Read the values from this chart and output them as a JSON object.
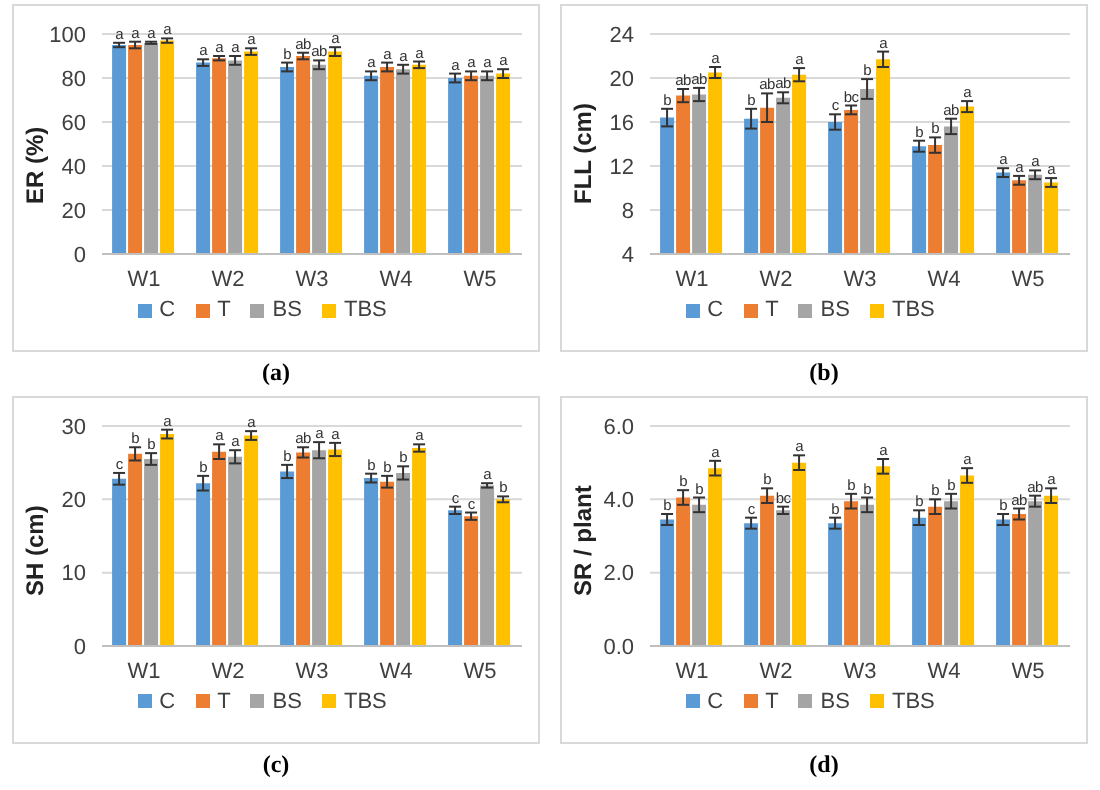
{
  "chart_data": [
    {
      "type": "bar",
      "ylabel": "ER (%)",
      "categories": [
        "W1",
        "W2",
        "W3",
        "W4",
        "W5"
      ],
      "ylim": [
        0,
        100
      ],
      "yticks": [
        0,
        20,
        40,
        60,
        80,
        100
      ],
      "grid": "y",
      "legend": "bottom",
      "annotations": [
        "(a)"
      ],
      "series": [
        {
          "name": "C",
          "color": "#5b9bd5",
          "values": [
            95,
            87,
            85,
            81,
            80
          ],
          "errors": [
            1,
            1.5,
            2,
            2,
            2
          ],
          "value_labels": [
            "a",
            "a",
            "b",
            "a",
            "a"
          ]
        },
        {
          "name": "T",
          "color": "#ed7d31",
          "values": [
            95,
            89,
            90,
            85,
            81
          ],
          "errors": [
            1.5,
            1,
            1.5,
            2,
            2
          ],
          "value_labels": [
            "a",
            "a",
            "ab",
            "a",
            "a"
          ]
        },
        {
          "name": "BS",
          "color": "#a5a5a5",
          "values": [
            96,
            88,
            86,
            84,
            81
          ],
          "errors": [
            0.5,
            2,
            2,
            2,
            2
          ],
          "value_labels": [
            "a",
            "a",
            "ab",
            "a",
            "a"
          ]
        },
        {
          "name": "TBS",
          "color": "#ffc000",
          "values": [
            97,
            92,
            92,
            86,
            82
          ],
          "errors": [
            1,
            1.5,
            2,
            1.5,
            2
          ],
          "value_labels": [
            "a",
            "a",
            "a",
            "a",
            "a"
          ]
        }
      ]
    },
    {
      "type": "bar",
      "ylabel": "FLL (cm)",
      "categories": [
        "W1",
        "W2",
        "W3",
        "W4",
        "W5"
      ],
      "ylim": [
        4,
        24
      ],
      "yticks": [
        4,
        8,
        12,
        16,
        20,
        24
      ],
      "grid": "y",
      "legend": "bottom",
      "annotations": [
        "(b)"
      ],
      "series": [
        {
          "name": "C",
          "color": "#5b9bd5",
          "values": [
            16.4,
            16.3,
            16.0,
            13.8,
            11.4
          ],
          "errors": [
            0.8,
            0.9,
            0.7,
            0.5,
            0.4
          ],
          "value_labels": [
            "b",
            "b",
            "c",
            "b",
            "a"
          ]
        },
        {
          "name": "T",
          "color": "#ed7d31",
          "values": [
            18.4,
            17.3,
            17.1,
            13.9,
            10.7
          ],
          "errors": [
            0.6,
            1.3,
            0.4,
            0.7,
            0.4
          ],
          "value_labels": [
            "ab",
            "ab",
            "bc",
            "b",
            "a"
          ]
        },
        {
          "name": "BS",
          "color": "#a5a5a5",
          "values": [
            18.5,
            18.2,
            19.0,
            15.6,
            11.2
          ],
          "errors": [
            0.6,
            0.5,
            0.9,
            0.7,
            0.4
          ],
          "value_labels": [
            "ab",
            "ab",
            "b",
            "ab",
            "a"
          ]
        },
        {
          "name": "TBS",
          "color": "#ffc000",
          "values": [
            20.5,
            20.3,
            21.7,
            17.4,
            10.5
          ],
          "errors": [
            0.5,
            0.6,
            0.7,
            0.5,
            0.4
          ],
          "value_labels": [
            "a",
            "a",
            "a",
            "a",
            "a"
          ]
        }
      ]
    },
    {
      "type": "bar",
      "ylabel": "SH (cm)",
      "categories": [
        "W1",
        "W2",
        "W3",
        "W4",
        "W5"
      ],
      "ylim": [
        0,
        30
      ],
      "yticks": [
        0,
        10,
        20,
        30
      ],
      "grid": "y",
      "legend": "bottom",
      "annotations": [
        "(c)"
      ],
      "series": [
        {
          "name": "C",
          "color": "#5b9bd5",
          "values": [
            22.8,
            22.2,
            23.8,
            22.9,
            18.5
          ],
          "errors": [
            0.8,
            1,
            0.9,
            0.6,
            0.5
          ],
          "value_labels": [
            "c",
            "b",
            "b",
            "b",
            "c"
          ]
        },
        {
          "name": "T",
          "color": "#ed7d31",
          "values": [
            26.2,
            26.5,
            26.4,
            22.4,
            17.7
          ],
          "errors": [
            0.9,
            1,
            0.7,
            0.8,
            0.5
          ],
          "value_labels": [
            "b",
            "a",
            "ab",
            "b",
            "c"
          ]
        },
        {
          "name": "BS",
          "color": "#a5a5a5",
          "values": [
            25.5,
            25.8,
            26.7,
            23.6,
            21.9
          ],
          "errors": [
            0.8,
            0.9,
            1.1,
            0.9,
            0.3
          ],
          "value_labels": [
            "b",
            "a",
            "a",
            "b",
            "a"
          ]
        },
        {
          "name": "TBS",
          "color": "#ffc000",
          "values": [
            28.9,
            28.7,
            26.8,
            27.0,
            20.0
          ],
          "errors": [
            0.6,
            0.6,
            0.9,
            0.5,
            0.4
          ],
          "value_labels": [
            "a",
            "a",
            "a",
            "a",
            "b"
          ]
        }
      ]
    },
    {
      "type": "bar",
      "ylabel": "SR / plant",
      "categories": [
        "W1",
        "W2",
        "W3",
        "W4",
        "W5"
      ],
      "ylim": [
        0,
        6
      ],
      "yticks": [
        {
          "value": 0,
          "label": "0.0"
        },
        {
          "value": 2,
          "label": "2.0"
        },
        {
          "value": 4,
          "label": "4.0"
        },
        {
          "value": 6,
          "label": "6.0"
        }
      ],
      "grid": "y",
      "legend": "bottom",
      "annotations": [
        "(d)"
      ],
      "series": [
        {
          "name": "C",
          "color": "#5b9bd5",
          "values": [
            3.45,
            3.35,
            3.35,
            3.5,
            3.45
          ],
          "errors": [
            0.15,
            0.15,
            0.15,
            0.2,
            0.15
          ],
          "value_labels": [
            "b",
            "c",
            "b",
            "b",
            "b"
          ]
        },
        {
          "name": "T",
          "color": "#ed7d31",
          "values": [
            4.05,
            4.1,
            3.95,
            3.8,
            3.6
          ],
          "errors": [
            0.2,
            0.2,
            0.2,
            0.2,
            0.15
          ],
          "value_labels": [
            "b",
            "b",
            "b",
            "b",
            "ab"
          ]
        },
        {
          "name": "BS",
          "color": "#a5a5a5",
          "values": [
            3.85,
            3.7,
            3.85,
            3.95,
            3.95
          ],
          "errors": [
            0.2,
            0.1,
            0.2,
            0.2,
            0.15
          ],
          "value_labels": [
            "b",
            "bc",
            "b",
            "b",
            "ab"
          ]
        },
        {
          "name": "TBS",
          "color": "#ffc000",
          "values": [
            4.85,
            5.0,
            4.9,
            4.65,
            4.1
          ],
          "errors": [
            0.2,
            0.2,
            0.2,
            0.2,
            0.2
          ],
          "value_labels": [
            "a",
            "a",
            "a",
            "a",
            "a"
          ]
        }
      ]
    }
  ]
}
